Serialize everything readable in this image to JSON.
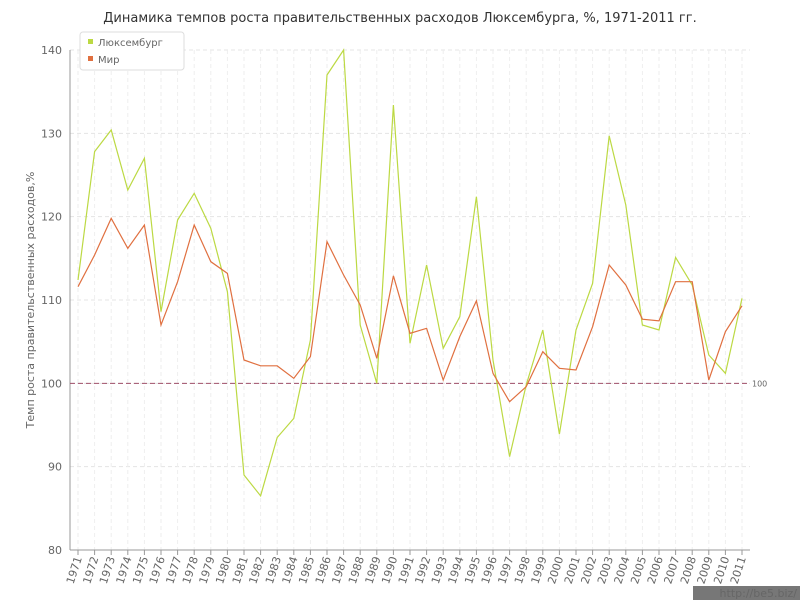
{
  "chart_data": {
    "type": "line",
    "title": "Динамика темпов роста правительственных расходов Люксембурга, %, 1971-2011 гг.",
    "y_label": "Темп роста правительственных расходов,%",
    "categories": [
      "1971",
      "1972",
      "1973",
      "1974",
      "1975",
      "1976",
      "1977",
      "1978",
      "1979",
      "1980",
      "1981",
      "1982",
      "1983",
      "1984",
      "1985",
      "1986",
      "1987",
      "1988",
      "1989",
      "1990",
      "1991",
      "1992",
      "1993",
      "1994",
      "1995",
      "1996",
      "1997",
      "1998",
      "1999",
      "2000",
      "2001",
      "2002",
      "2003",
      "2004",
      "2005",
      "2006",
      "2007",
      "2008",
      "2009",
      "2010",
      "2011"
    ],
    "series": [
      {
        "name": "Люксембург",
        "color": "#bcd943",
        "values": [
          112.4,
          127.8,
          130.4,
          123.2,
          127.0,
          108.6,
          119.6,
          122.8,
          118.6,
          111.0,
          89.0,
          86.5,
          93.5,
          95.8,
          105.2,
          137.0,
          140.0,
          107.0,
          100.0,
          133.4,
          104.8,
          114.2,
          104.2,
          108.0,
          122.4,
          102.8,
          91.2,
          99.8,
          106.4,
          93.9,
          106.4,
          112.0,
          129.7,
          121.4,
          107.0,
          106.4,
          115.1,
          111.8,
          103.4,
          101.2,
          110.2
        ]
      },
      {
        "name": "Мир",
        "color": "#e07040",
        "values": [
          111.6,
          115.4,
          119.8,
          116.2,
          119.0,
          107.0,
          112.2,
          119.0,
          114.6,
          113.2,
          102.8,
          102.1,
          102.1,
          100.6,
          103.2,
          117.0,
          113.0,
          109.4,
          103.0,
          112.9,
          106.0,
          106.6,
          100.4,
          105.6,
          109.9,
          101.2,
          97.8,
          99.6,
          103.8,
          101.8,
          101.6,
          106.8,
          114.2,
          111.8,
          107.7,
          107.5,
          112.2,
          112.2,
          100.4,
          106.2,
          109.3
        ]
      }
    ],
    "ylim": [
      80,
      140
    ],
    "yticks": [
      80,
      90,
      100,
      110,
      120,
      130,
      140
    ],
    "grid": true,
    "reference_line": 100,
    "reference_color": "#a0506a",
    "legend": "top-left",
    "watermark": "http://be5.biz/"
  }
}
